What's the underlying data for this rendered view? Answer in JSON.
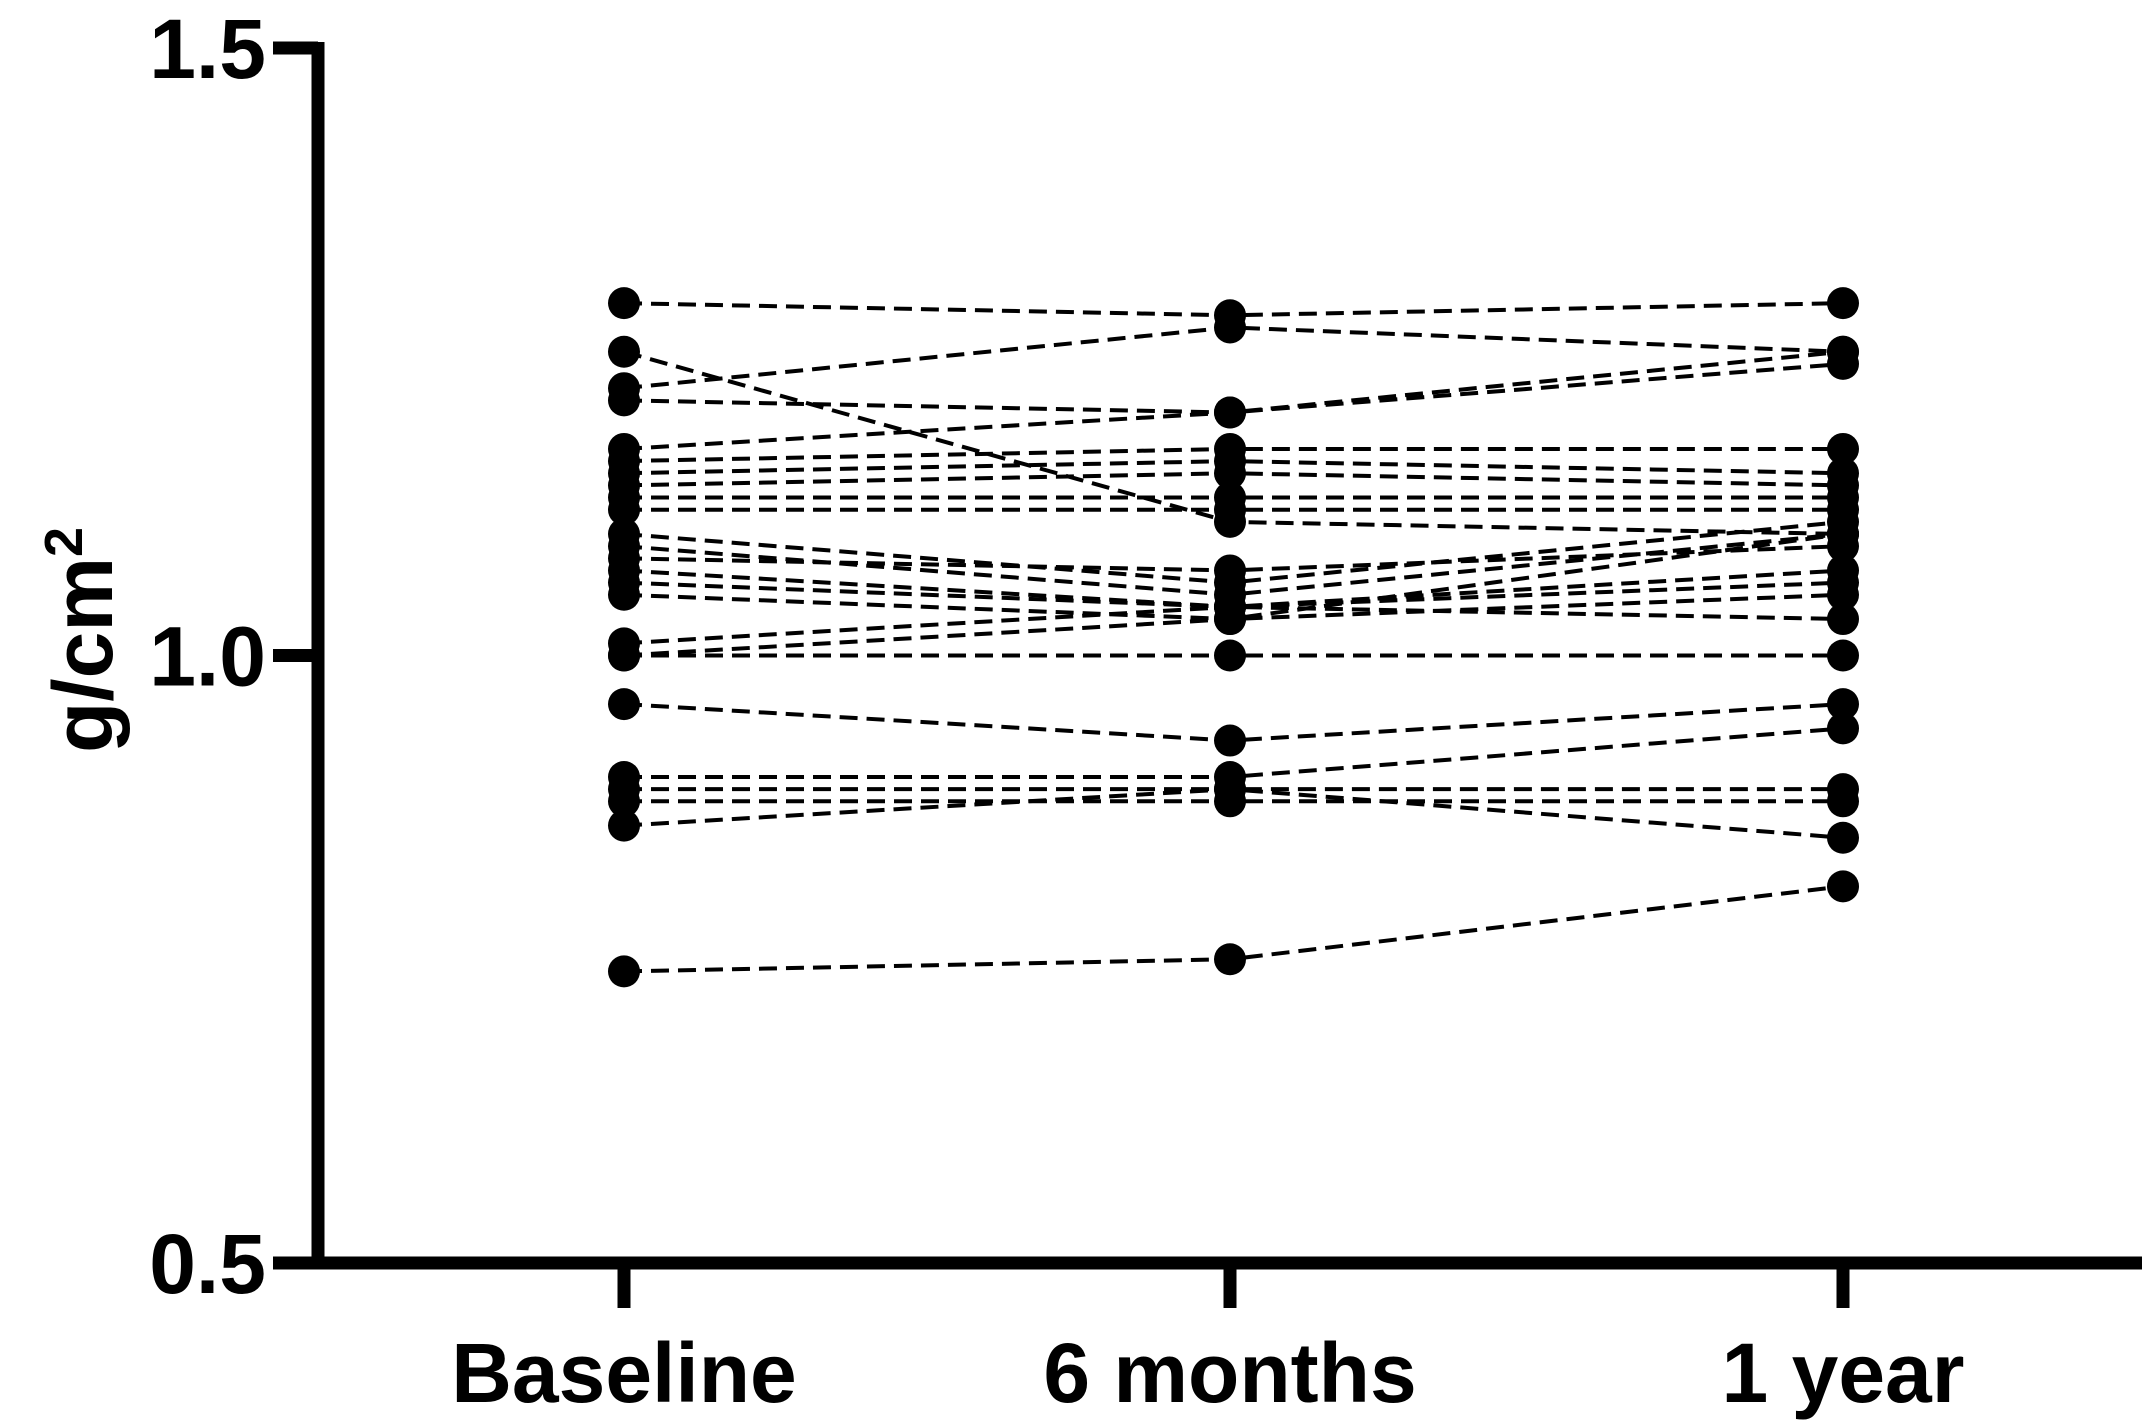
{
  "chart_data": {
    "type": "line",
    "title": "",
    "xlabel": "",
    "ylabel": "g/cm",
    "ylabel_superscript": "2",
    "categories": [
      "Baseline",
      "6 months",
      "1 year"
    ],
    "ylim": [
      0.5,
      1.5
    ],
    "yticks": [
      0.5,
      1.0,
      1.5
    ],
    "ytick_labels": [
      "0.5",
      "1.0",
      "1.5"
    ],
    "grid": false,
    "line_style": "dashed",
    "marker": "filled-circle",
    "color": "#000000",
    "series": [
      {
        "values": [
          1.29,
          1.28,
          1.29
        ]
      },
      {
        "values": [
          1.25,
          1.11,
          1.1
        ]
      },
      {
        "values": [
          1.22,
          1.27,
          1.25
        ]
      },
      {
        "values": [
          1.21,
          1.2,
          1.24
        ]
      },
      {
        "values": [
          1.17,
          1.2,
          1.25
        ]
      },
      {
        "values": [
          1.16,
          1.17,
          1.17
        ]
      },
      {
        "values": [
          1.15,
          1.16,
          1.15
        ]
      },
      {
        "values": [
          1.14,
          1.15,
          1.14
        ]
      },
      {
        "values": [
          1.13,
          1.13,
          1.13
        ]
      },
      {
        "values": [
          1.12,
          1.12,
          1.12
        ]
      },
      {
        "values": [
          1.1,
          1.06,
          1.11
        ]
      },
      {
        "values": [
          1.09,
          1.05,
          1.1
        ]
      },
      {
        "values": [
          1.08,
          1.07,
          1.09
        ]
      },
      {
        "values": [
          1.07,
          1.04,
          1.07
        ]
      },
      {
        "values": [
          1.06,
          1.04,
          1.06
        ]
      },
      {
        "values": [
          1.05,
          1.03,
          1.05
        ]
      },
      {
        "values": [
          1.01,
          1.04,
          1.03
        ]
      },
      {
        "values": [
          1.0,
          1.03,
          1.1
        ]
      },
      {
        "values": [
          1.0,
          1.0,
          1.0
        ]
      },
      {
        "values": [
          0.96,
          0.93,
          0.96
        ]
      },
      {
        "values": [
          0.9,
          0.9,
          0.94
        ]
      },
      {
        "values": [
          0.89,
          0.89,
          0.85
        ]
      },
      {
        "values": [
          0.88,
          0.88,
          0.88
        ]
      },
      {
        "values": [
          0.86,
          0.89,
          0.89
        ]
      },
      {
        "values": [
          0.74,
          0.75,
          0.81
        ]
      }
    ]
  }
}
